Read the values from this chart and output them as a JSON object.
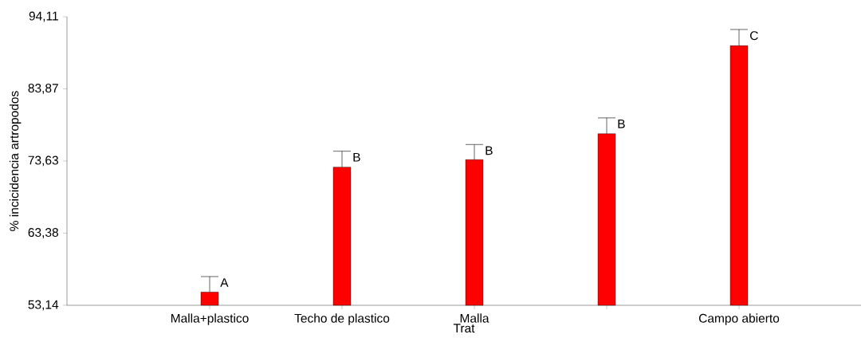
{
  "chart_data": {
    "type": "bar",
    "xlabel": "Trat",
    "ylabel": "% incicidencia artropodos",
    "categories": [
      "Malla+plastico",
      "Techo de plastico",
      "Malla",
      null,
      "Campo abierto"
    ],
    "values": [
      55.02,
      72.76,
      73.82,
      77.5,
      90.0
    ],
    "errors": [
      2.2,
      2.26,
      2.15,
      2.25,
      2.3
    ],
    "value_labels": [
      "A",
      "B",
      "B",
      "B",
      "C"
    ],
    "color": "#ff0000",
    "ylim": [
      53.14,
      94.11
    ],
    "yticks": [
      {
        "value": 53.14,
        "label": "53,14"
      },
      {
        "value": 63.38,
        "label": "63,38"
      },
      {
        "value": 73.63,
        "label": "73,63"
      },
      {
        "value": 83.87,
        "label": "83,87"
      },
      {
        "value": 94.11,
        "label": "94,11"
      }
    ],
    "grid": false
  }
}
